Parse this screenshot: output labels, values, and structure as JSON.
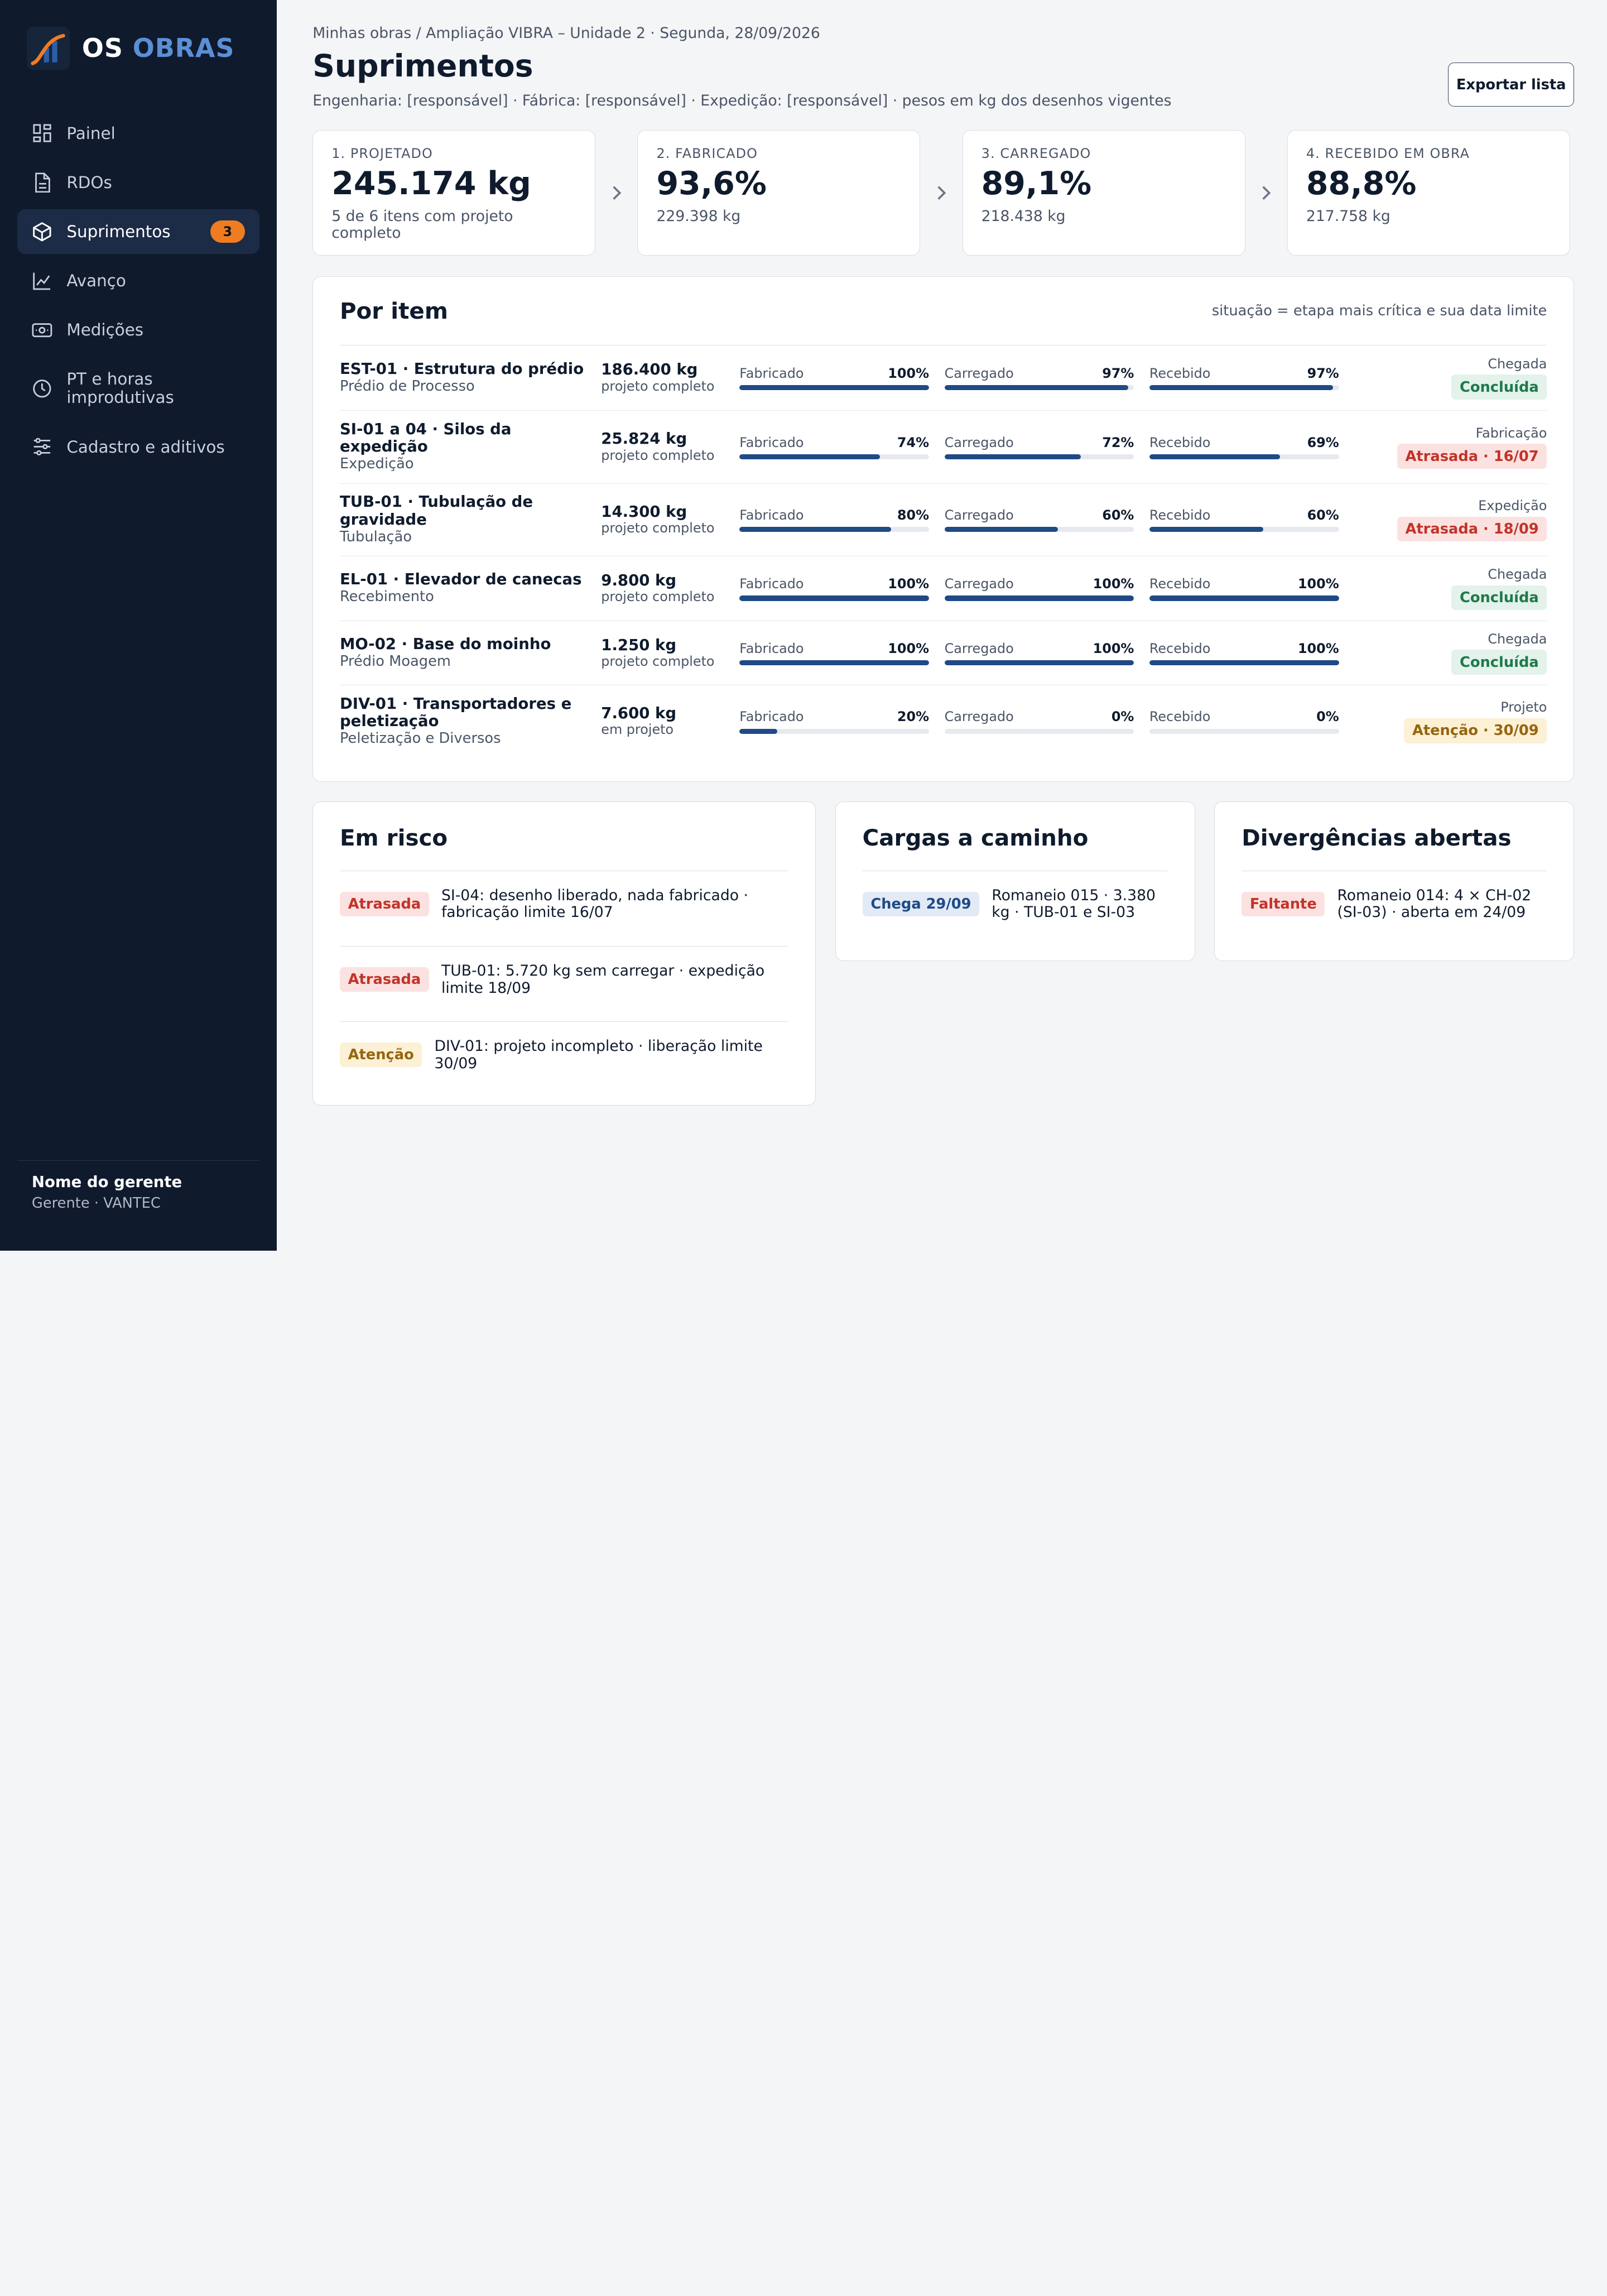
{
  "brand": {
    "name_part1": "OS",
    "name_part2": "OBRAS",
    "accent_color": "#5b8fd6"
  },
  "sidebar": {
    "items": [
      {
        "label": "Painel",
        "icon": "grid-icon"
      },
      {
        "label": "RDOs",
        "icon": "document-icon"
      },
      {
        "label": "Suprimentos",
        "icon": "box-icon",
        "badge": "3",
        "active": true
      },
      {
        "label": "Avanço",
        "icon": "chart-line-icon"
      },
      {
        "label": "Medições",
        "icon": "money-icon"
      },
      {
        "label": "PT e horas improdutivas",
        "icon": "clock-icon"
      },
      {
        "label": "Cadastro e aditivos",
        "icon": "sliders-icon"
      }
    ],
    "user": {
      "name": "Nome do gerente",
      "role": "Gerente · VANTEC"
    }
  },
  "header": {
    "breadcrumb": "Minhas obras / Ampliação VIBRA – Unidade 2 · Segunda, 28/09/2026",
    "title": "Suprimentos",
    "subtitle": "Engenharia: [responsável] · Fábrica: [responsável] · Expedição: [responsável] · pesos em kg dos desenhos vigentes",
    "export_label": "Exportar lista"
  },
  "kpis": [
    {
      "label": "1. PROJETADO",
      "value": "245.174 kg",
      "sub": "5 de 6 itens com projeto completo"
    },
    {
      "label": "2. FABRICADO",
      "value": "93,6%",
      "sub": "229.398 kg"
    },
    {
      "label": "3. CARREGADO",
      "value": "89,1%",
      "sub": "218.438 kg"
    },
    {
      "label": "4. RECEBIDO EM OBRA",
      "value": "88,8%",
      "sub": "217.758 kg"
    }
  ],
  "items_section": {
    "title": "Por item",
    "note": "situação = etapa mais crítica e sua data limite",
    "bar_labels": [
      "Fabricado",
      "Carregado",
      "Recebido"
    ],
    "rows": [
      {
        "name": "EST-01 · Estrutura do prédio",
        "area": "Prédio de Processo",
        "weight": "186.400 kg",
        "status": "projeto completo",
        "fab": "100%",
        "fab_v": 100,
        "car": "97%",
        "car_v": 97,
        "rec": "97%",
        "rec_v": 97,
        "stage": "Chegada",
        "pill": "Concluída",
        "pill_type": "ok"
      },
      {
        "name": "SI-01 a 04 · Silos da expedição",
        "area": "Expedição",
        "weight": "25.824 kg",
        "status": "projeto completo",
        "fab": "74%",
        "fab_v": 74,
        "car": "72%",
        "car_v": 72,
        "rec": "69%",
        "rec_v": 69,
        "stage": "Fabricação",
        "pill": "Atrasada · 16/07",
        "pill_type": "late"
      },
      {
        "name": "TUB-01 · Tubulação de gravidade",
        "area": "Tubulação",
        "weight": "14.300 kg",
        "status": "projeto completo",
        "fab": "80%",
        "fab_v": 80,
        "car": "60%",
        "car_v": 60,
        "rec": "60%",
        "rec_v": 60,
        "stage": "Expedição",
        "pill": "Atrasada · 18/09",
        "pill_type": "late"
      },
      {
        "name": "EL-01 · Elevador de canecas",
        "area": "Recebimento",
        "weight": "9.800 kg",
        "status": "projeto completo",
        "fab": "100%",
        "fab_v": 100,
        "car": "100%",
        "car_v": 100,
        "rec": "100%",
        "rec_v": 100,
        "stage": "Chegada",
        "pill": "Concluída",
        "pill_type": "ok"
      },
      {
        "name": "MO-02 · Base do moinho",
        "area": "Prédio Moagem",
        "weight": "1.250 kg",
        "status": "projeto completo",
        "fab": "100%",
        "fab_v": 100,
        "car": "100%",
        "car_v": 100,
        "rec": "100%",
        "rec_v": 100,
        "stage": "Chegada",
        "pill": "Concluída",
        "pill_type": "ok"
      },
      {
        "name": "DIV-01 · Transportadores e peletização",
        "area": "Peletização e Diversos",
        "weight": "7.600 kg",
        "status": "em projeto",
        "fab": "20%",
        "fab_v": 20,
        "car": "0%",
        "car_v": 0,
        "rec": "0%",
        "rec_v": 0,
        "stage": "Projeto",
        "pill": "Atenção · 30/09",
        "pill_type": "warn"
      }
    ]
  },
  "risk": {
    "title": "Em risco",
    "items": [
      {
        "pill": "Atrasada",
        "text": "SI-04: desenho liberado, nada fabricado · fabricação limite 16/07"
      },
      {
        "pill": "Atrasada",
        "text": "TUB-01: 5.720 kg sem carregar · expedição limite 18/09"
      },
      {
        "pill": "Atenção",
        "text": "DIV-01: projeto incompleto · liberação limite 30/09"
      }
    ]
  },
  "loads": {
    "title": "Cargas a caminho",
    "items": [
      {
        "pill": "Chega 29/09",
        "text": "Romaneio 015 · 3.380 kg · TUB-01 e SI-03"
      }
    ]
  },
  "divergences": {
    "title": "Divergências abertas",
    "items": [
      {
        "pill": "Faltante",
        "text": "Romaneio 014: 4 × CH-02 (SI-03) · aberta em 24/09"
      }
    ]
  },
  "colors": {
    "sidebar_bg": "#0f1a2c",
    "bar_fill": "#1f4a85",
    "badge": "#f07c22"
  }
}
